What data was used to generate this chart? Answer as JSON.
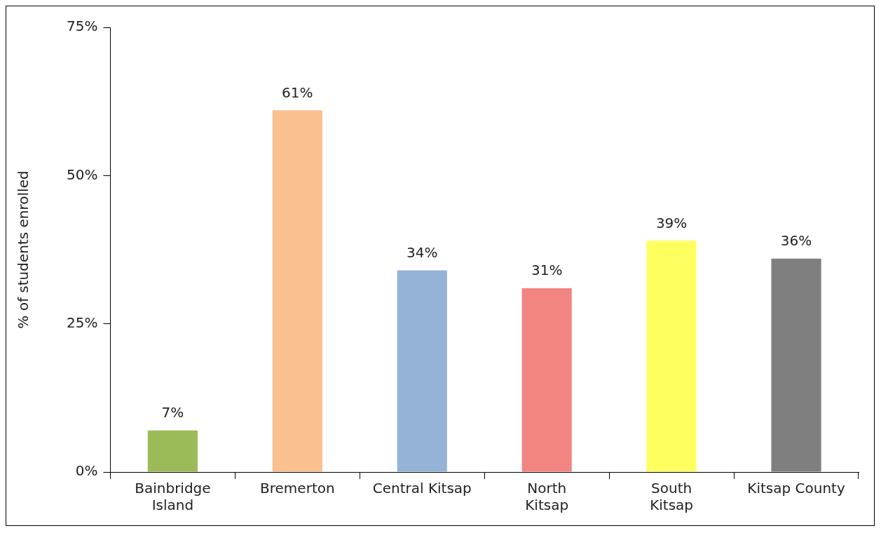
{
  "chart_data": {
    "type": "bar",
    "ylabel": "% of students enrolled",
    "categories": [
      "Bainbridge\nIsland",
      "Bremerton",
      "Central Kitsap",
      "North\nKitsap",
      "South\nKitsap",
      "Kitsap County"
    ],
    "values": [
      7,
      61,
      34,
      31,
      39,
      36
    ],
    "colors": [
      "#9bbb59",
      "#fac090",
      "#95b3d7",
      "#f28482",
      "#ffff5f",
      "#7f7f7f"
    ],
    "value_labels": [
      "7%",
      "61%",
      "34%",
      "31%",
      "39%",
      "36%"
    ],
    "ylim": [
      0,
      75
    ],
    "yticks": [
      {
        "value": 0,
        "label": "0%"
      },
      {
        "value": 25,
        "label": "25%"
      },
      {
        "value": 50,
        "label": "50%"
      },
      {
        "value": 75,
        "label": "75%"
      }
    ],
    "grid": false,
    "legend": false
  }
}
